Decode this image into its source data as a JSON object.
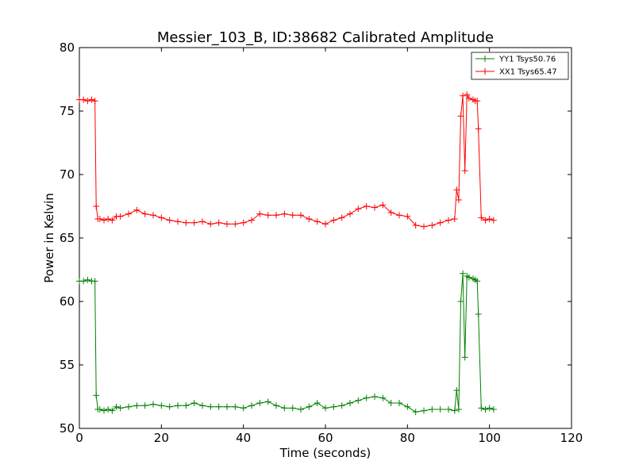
{
  "chart_data": {
    "type": "line",
    "title": "Messier_103_B, ID:38682 Calibrated Amplitude",
    "xlabel": "Time (seconds)",
    "ylabel": "Power in Kelvin",
    "xlim": [
      0,
      120
    ],
    "ylim": [
      50,
      80
    ],
    "xticks": [
      0,
      20,
      40,
      60,
      80,
      100,
      120
    ],
    "yticks": [
      50,
      55,
      60,
      65,
      70,
      75,
      80
    ],
    "xtick_labels": [
      "0",
      "20",
      "40",
      "60",
      "80",
      "100",
      "120"
    ],
    "ytick_labels": [
      "50",
      "55",
      "60",
      "65",
      "70",
      "75",
      "80"
    ],
    "grid": false,
    "legend_position": "top-right",
    "marker": "+",
    "series": [
      {
        "name": "YY1 Tsys50.76",
        "color": "#008000",
        "x": [
          0,
          1,
          2,
          3,
          3.8,
          4.1,
          4.5,
          5,
          6,
          7,
          8,
          9,
          10,
          12,
          14,
          16,
          18,
          20,
          22,
          24,
          26,
          28,
          30,
          32,
          34,
          36,
          38,
          40,
          42,
          44,
          46,
          48,
          50,
          52,
          54,
          56,
          58,
          60,
          62,
          64,
          66,
          68,
          70,
          72,
          74,
          76,
          78,
          80,
          82,
          84,
          86,
          88,
          90,
          91.5,
          92,
          92.5,
          93,
          93.5,
          94,
          94.5,
          95,
          96,
          96.5,
          97,
          97.3,
          98,
          99,
          100,
          101
        ],
        "y": [
          61.6,
          61.6,
          61.7,
          61.6,
          61.6,
          52.6,
          51.5,
          51.5,
          51.4,
          51.5,
          51.4,
          51.7,
          51.6,
          51.7,
          51.8,
          51.8,
          51.9,
          51.8,
          51.7,
          51.8,
          51.8,
          52.0,
          51.8,
          51.7,
          51.7,
          51.7,
          51.7,
          51.6,
          51.8,
          52.0,
          52.1,
          51.8,
          51.6,
          51.6,
          51.5,
          51.7,
          52.0,
          51.6,
          51.7,
          51.8,
          52.0,
          52.2,
          52.4,
          52.5,
          52.4,
          52.0,
          52.0,
          51.7,
          51.3,
          51.4,
          51.5,
          51.5,
          51.5,
          51.4,
          53.0,
          51.5,
          60.0,
          62.2,
          55.6,
          62.0,
          61.9,
          61.8,
          61.7,
          61.6,
          59.0,
          51.6,
          51.5,
          51.6,
          51.5
        ]
      },
      {
        "name": "XX1 Tsys65.47",
        "color": "#ff0000",
        "x": [
          0,
          1,
          2,
          3,
          3.8,
          4.1,
          4.5,
          5,
          6,
          7,
          8,
          9,
          10,
          12,
          14,
          16,
          18,
          20,
          22,
          24,
          26,
          28,
          30,
          32,
          34,
          36,
          38,
          40,
          42,
          44,
          46,
          48,
          50,
          52,
          54,
          56,
          58,
          60,
          62,
          64,
          66,
          68,
          70,
          72,
          74,
          76,
          78,
          80,
          82,
          84,
          86,
          88,
          90,
          91.5,
          92,
          92.5,
          93,
          93.5,
          94,
          94.5,
          95,
          96,
          96.5,
          97,
          97.3,
          98,
          99,
          100,
          101
        ],
        "y": [
          75.9,
          75.9,
          75.8,
          75.9,
          75.8,
          67.5,
          66.5,
          66.5,
          66.4,
          66.5,
          66.4,
          66.7,
          66.7,
          66.9,
          67.2,
          66.9,
          66.8,
          66.6,
          66.4,
          66.3,
          66.2,
          66.2,
          66.3,
          66.1,
          66.2,
          66.1,
          66.1,
          66.2,
          66.4,
          66.9,
          66.8,
          66.8,
          66.9,
          66.8,
          66.8,
          66.5,
          66.3,
          66.1,
          66.4,
          66.6,
          66.9,
          67.3,
          67.5,
          67.4,
          67.6,
          67.0,
          66.8,
          66.7,
          66.0,
          65.9,
          66.0,
          66.2,
          66.4,
          66.5,
          68.8,
          68.0,
          74.6,
          76.2,
          70.3,
          76.3,
          76.0,
          75.9,
          75.8,
          75.8,
          73.6,
          66.6,
          66.4,
          66.5,
          66.4
        ]
      }
    ]
  }
}
